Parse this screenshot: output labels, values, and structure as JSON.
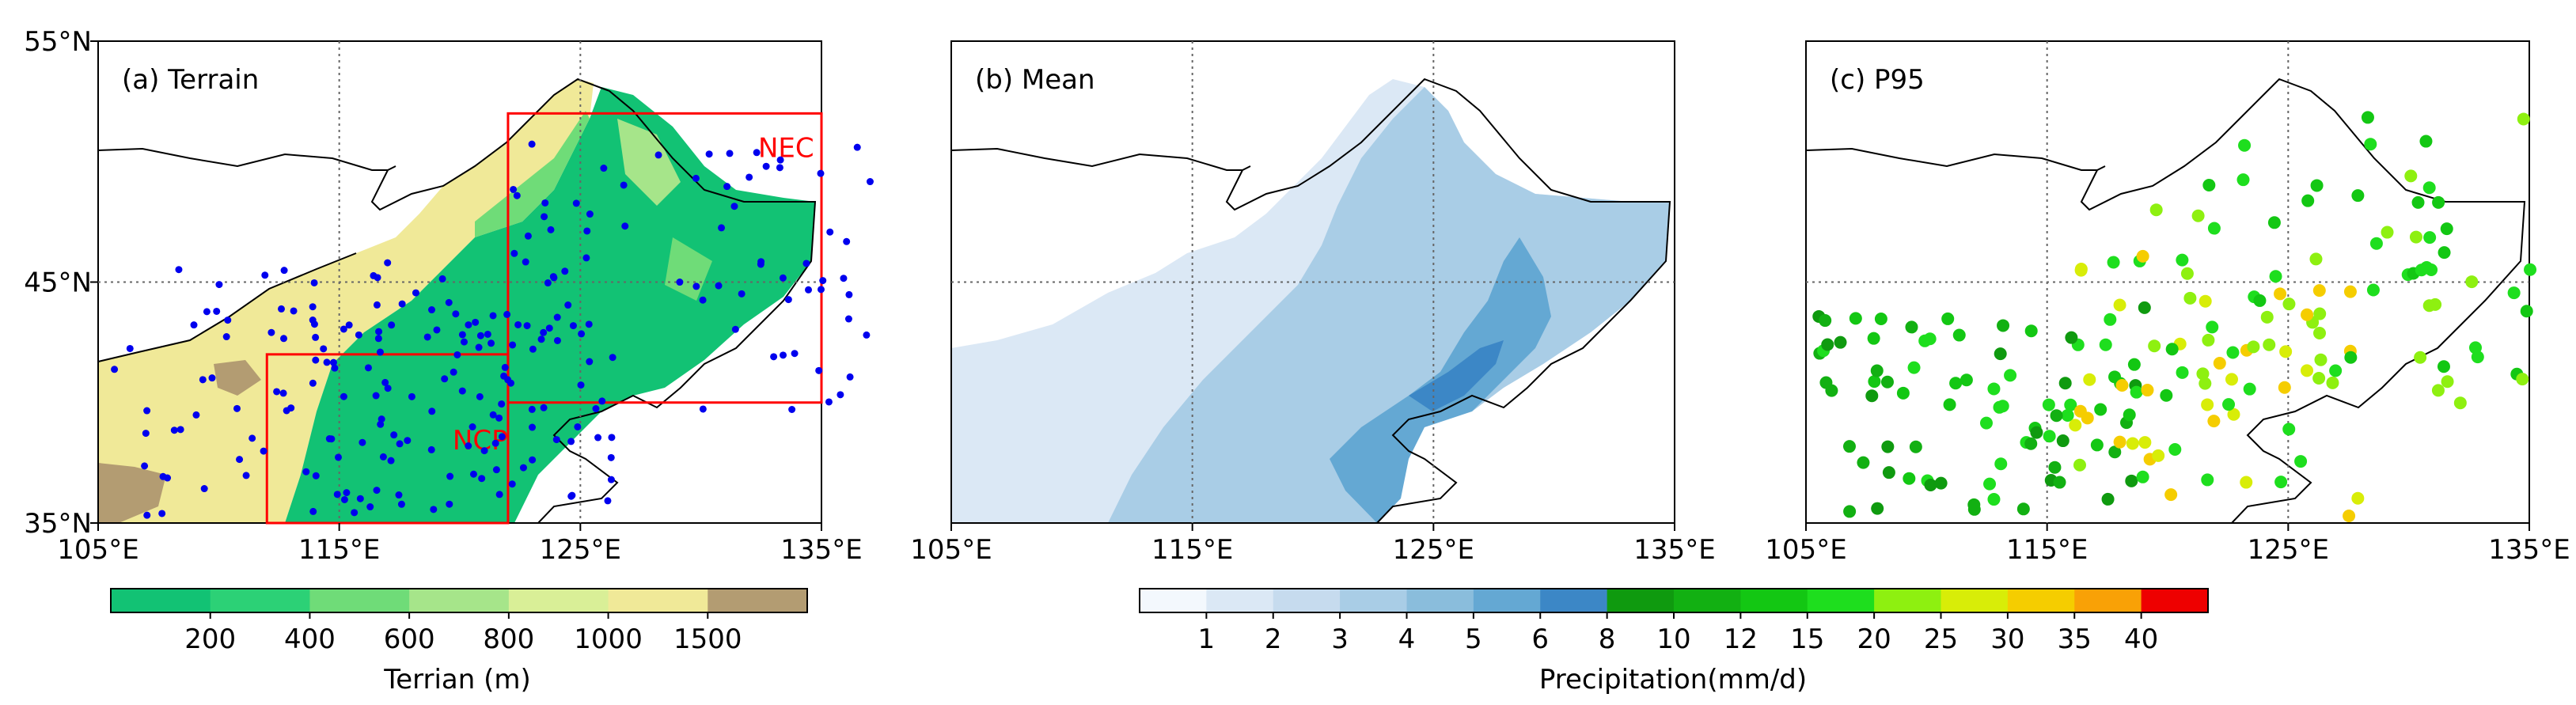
{
  "chart_data": [
    {
      "type": "map",
      "title": "(a) Terrain",
      "xlim": [
        105,
        135
      ],
      "ylim": [
        35,
        55
      ],
      "x_ticks": [
        105,
        115,
        125,
        135
      ],
      "x_tick_labels": [
        "105°E",
        "115°E",
        "125°E",
        "135°E"
      ],
      "y_ticks": [
        35,
        45,
        55
      ],
      "y_tick_labels": [
        "35°N",
        "45°N",
        "55°N"
      ],
      "gridlines": {
        "lon": [
          115,
          125
        ],
        "lat": [
          45
        ],
        "style": "dotted"
      },
      "regions": [
        {
          "name": "NEC",
          "lon": [
            122,
            135
          ],
          "lat": [
            40,
            52
          ],
          "color": "#ff0000"
        },
        {
          "name": "NCP",
          "lon": [
            112,
            122
          ],
          "lat": [
            35,
            42
          ],
          "color": "#ff0000"
        }
      ],
      "stations_color": "#0000ee"
    },
    {
      "type": "map",
      "title": "(b) Mean",
      "xlim": [
        105,
        135
      ],
      "ylim": [
        35,
        55
      ],
      "x_ticks": [
        105,
        115,
        125,
        135
      ],
      "x_tick_labels": [
        "105°E",
        "115°E",
        "125°E",
        "135°E"
      ],
      "gridlines": {
        "lon": [
          115,
          125
        ],
        "lat": [
          45
        ],
        "style": "dotted"
      }
    },
    {
      "type": "map",
      "title": "(c) P95",
      "xlim": [
        105,
        135
      ],
      "ylim": [
        35,
        55
      ],
      "x_ticks": [
        105,
        115,
        125,
        135
      ],
      "x_tick_labels": [
        "105°E",
        "115°E",
        "125°E",
        "135°E"
      ],
      "gridlines": {
        "lon": [
          115,
          125
        ],
        "lat": [
          45
        ],
        "style": "dotted"
      }
    }
  ],
  "colorbars": {
    "terrain": {
      "label": "Terrian (m)",
      "tick_labels": [
        "200",
        "400",
        "600",
        "800",
        "1000",
        "1500"
      ],
      "colors": [
        "#12c274",
        "#2cd176",
        "#6fdc78",
        "#a6e58a",
        "#d9ef97",
        "#f0e998",
        "#b39c72"
      ]
    },
    "precip": {
      "label": "Precipitation(mm/d)",
      "tick_labels": [
        "1",
        "2",
        "3",
        "4",
        "5",
        "6",
        "8",
        "10",
        "12",
        "15",
        "20",
        "25",
        "30",
        "35",
        "40"
      ],
      "colors": [
        "#f3f8fd",
        "#dbe8f5",
        "#c6dbee",
        "#a9cde6",
        "#8abddc",
        "#64a8d3",
        "#3c87c6",
        "#0f9a0f",
        "#12b012",
        "#13c713",
        "#1ede1e",
        "#8ef010",
        "#d8ed08",
        "#f5cd00",
        "#f9a106",
        "#ee0000"
      ]
    }
  }
}
